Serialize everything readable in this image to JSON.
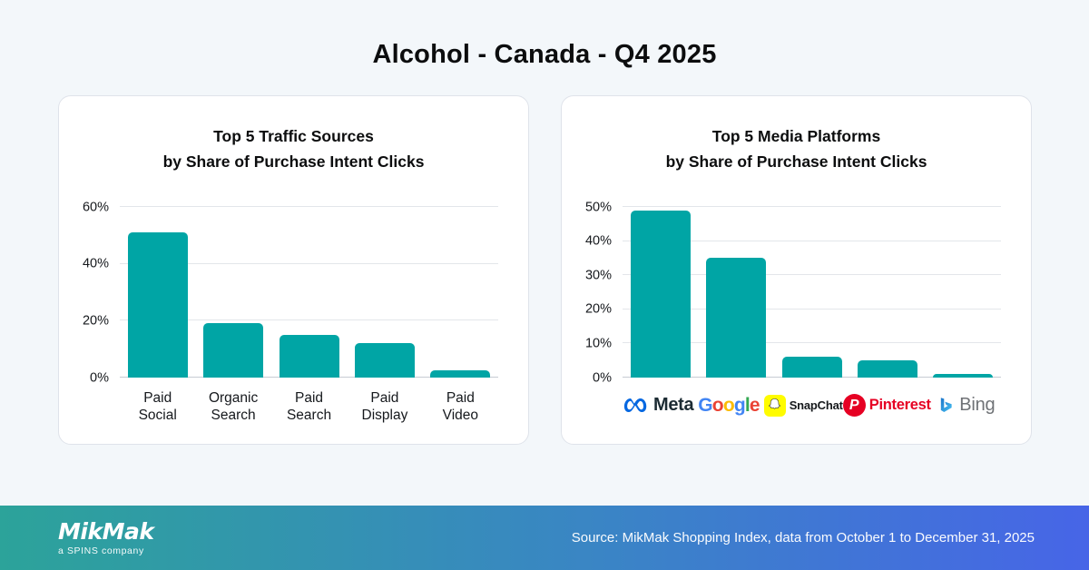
{
  "page": {
    "title": "Alcohol - Canada - Q4 2025"
  },
  "chart_data": [
    {
      "type": "bar",
      "title": "Top 5 Traffic Sources by Share of Purchase Intent Clicks",
      "title_lines": [
        "Top 5 Traffic Sources",
        "by Share of Purchase Intent Clicks"
      ],
      "categories": [
        "Paid Social",
        "Organic Search",
        "Paid Search",
        "Paid Display",
        "Paid Video"
      ],
      "values": [
        51,
        19,
        15,
        12,
        2.5
      ],
      "ylim": [
        0,
        60
      ],
      "yticks": [
        "0%",
        "20%",
        "40%",
        "60%"
      ],
      "grid": true,
      "legend": "none",
      "bar_color": "#00a5a5"
    },
    {
      "type": "bar",
      "title": "Top 5 Media Platforms by Share of Purchase Intent Clicks",
      "title_lines": [
        "Top 5 Media Platforms",
        "by Share of Purchase Intent Clicks"
      ],
      "categories": [
        "Meta",
        "Google",
        "SnapChat",
        "Pinterest",
        "Bing"
      ],
      "values": [
        49,
        35,
        6,
        5,
        1
      ],
      "ylim": [
        0,
        50
      ],
      "yticks": [
        "0%",
        "10%",
        "20%",
        "30%",
        "40%",
        "50%"
      ],
      "grid": true,
      "legend": "none",
      "bar_color": "#00a5a5"
    }
  ],
  "media_platforms": {
    "meta": {
      "label": "Meta",
      "icon_color": "#0668e1",
      "text_color": "#1c2b33"
    },
    "google": {
      "label": "Google",
      "letters": [
        {
          "ch": "G",
          "color": "#4285F4"
        },
        {
          "ch": "o",
          "color": "#EA4335"
        },
        {
          "ch": "o",
          "color": "#FBBC05"
        },
        {
          "ch": "g",
          "color": "#4285F4"
        },
        {
          "ch": "l",
          "color": "#34A853"
        },
        {
          "ch": "e",
          "color": "#EA4335"
        }
      ]
    },
    "snapchat": {
      "label": "SnapChat",
      "icon_bg": "#FFFC00",
      "text_color": "#16191c"
    },
    "pinterest": {
      "label": "Pinterest",
      "color": "#E60023"
    },
    "bing": {
      "label": "Bing",
      "icon_color_start": "#1b74c9",
      "icon_color_end": "#46c0f2",
      "text_color": "#6f7276"
    }
  },
  "colors": {
    "bar": "#00a5a5",
    "footer_gradient_start": "#2ca39a",
    "footer_gradient_end": "#4765e7"
  },
  "footer": {
    "logo_text": "MikMak",
    "logo_subtext": "a SPINS company",
    "source_text": "Source: MikMak Shopping Index, data from October 1 to December 31, 2025"
  }
}
